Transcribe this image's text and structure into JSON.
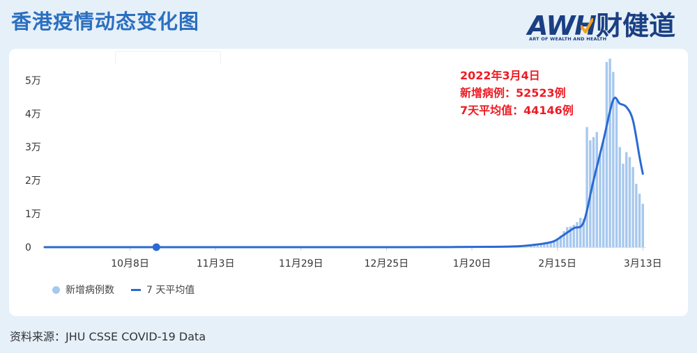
{
  "header": {
    "title": "香港疫情动态变化图"
  },
  "logo": {
    "main": "AWH",
    "cn": "财健道",
    "sub": "ART OF WEALTH AND HEALTH",
    "brand_color": "#1a3f82",
    "check_color": "#f2a31b"
  },
  "annotation": {
    "date": "2022年3月4日",
    "new_cases": "新增病例：52523例",
    "avg7": "7天平均值：44146例",
    "color": "#ee1b24"
  },
  "legend": {
    "bar_label": "新增病例数",
    "line_label": "7 天平均值"
  },
  "source": "资料来源：JHU CSSE COVID-19 Data",
  "chart_data": {
    "type": "bar",
    "title": "",
    "xlabel": "",
    "ylabel": "",
    "ylim": [
      0,
      58000
    ],
    "y_ticks": [
      {
        "value": 0,
        "label": "0"
      },
      {
        "value": 10000,
        "label": "1万"
      },
      {
        "value": 20000,
        "label": "2万"
      },
      {
        "value": 30000,
        "label": "3万"
      },
      {
        "value": 40000,
        "label": "4万"
      },
      {
        "value": 50000,
        "label": "5万"
      }
    ],
    "x_range": [
      "2021-09-12",
      "2022-03-14"
    ],
    "x_ticks": [
      {
        "date": "2021-10-08",
        "label": "10月8日"
      },
      {
        "date": "2021-11-03",
        "label": "11月3日"
      },
      {
        "date": "2021-11-29",
        "label": "11月29日"
      },
      {
        "date": "2021-12-25",
        "label": "12月25日"
      },
      {
        "date": "2022-01-20",
        "label": "1月20日"
      },
      {
        "date": "2022-02-15",
        "label": "2月15日"
      },
      {
        "date": "2022-03-13",
        "label": "3月13日"
      }
    ],
    "marker": {
      "date": "2021-10-16",
      "value": 0
    },
    "colors": {
      "bars": "#a7c8ee",
      "line": "#2a6ad2"
    },
    "series": [
      {
        "name": "新增病例数",
        "type": "bar",
        "points": [
          {
            "date": "2022-02-07",
            "value": 600
          },
          {
            "date": "2022-02-08",
            "value": 700
          },
          {
            "date": "2022-02-09",
            "value": 900
          },
          {
            "date": "2022-02-10",
            "value": 1100
          },
          {
            "date": "2022-02-11",
            "value": 1400
          },
          {
            "date": "2022-02-12",
            "value": 1500
          },
          {
            "date": "2022-02-13",
            "value": 1800
          },
          {
            "date": "2022-02-14",
            "value": 2100
          },
          {
            "date": "2022-02-15",
            "value": 2400
          },
          {
            "date": "2022-02-16",
            "value": 3500
          },
          {
            "date": "2022-02-17",
            "value": 4800
          },
          {
            "date": "2022-02-18",
            "value": 6000
          },
          {
            "date": "2022-02-19",
            "value": 6200
          },
          {
            "date": "2022-02-20",
            "value": 6700
          },
          {
            "date": "2022-02-21",
            "value": 7500
          },
          {
            "date": "2022-02-22",
            "value": 8800
          },
          {
            "date": "2022-02-23",
            "value": 8500
          },
          {
            "date": "2022-02-24",
            "value": 36000
          },
          {
            "date": "2022-02-25",
            "value": 32000
          },
          {
            "date": "2022-02-26",
            "value": 33000
          },
          {
            "date": "2022-02-27",
            "value": 34500
          },
          {
            "date": "2022-02-28",
            "value": 28000
          },
          {
            "date": "2022-03-01",
            "value": 32000
          },
          {
            "date": "2022-03-02",
            "value": 55500
          },
          {
            "date": "2022-03-03",
            "value": 56500
          },
          {
            "date": "2022-03-04",
            "value": 52523
          },
          {
            "date": "2022-03-05",
            "value": 44000
          },
          {
            "date": "2022-03-06",
            "value": 30000
          },
          {
            "date": "2022-03-07",
            "value": 25000
          },
          {
            "date": "2022-03-08",
            "value": 28500
          },
          {
            "date": "2022-03-09",
            "value": 27000
          },
          {
            "date": "2022-03-10",
            "value": 24000
          },
          {
            "date": "2022-03-11",
            "value": 19000
          },
          {
            "date": "2022-03-12",
            "value": 16000
          },
          {
            "date": "2022-03-13",
            "value": 13000
          }
        ]
      },
      {
        "name": "7 天平均值",
        "type": "line",
        "points": [
          {
            "date": "2021-09-12",
            "value": 0
          },
          {
            "date": "2021-12-31",
            "value": 0
          },
          {
            "date": "2022-01-15",
            "value": 50
          },
          {
            "date": "2022-01-25",
            "value": 100
          },
          {
            "date": "2022-02-01",
            "value": 200
          },
          {
            "date": "2022-02-05",
            "value": 400
          },
          {
            "date": "2022-02-08",
            "value": 700
          },
          {
            "date": "2022-02-11",
            "value": 1100
          },
          {
            "date": "2022-02-14",
            "value": 1800
          },
          {
            "date": "2022-02-17",
            "value": 3700
          },
          {
            "date": "2022-02-20",
            "value": 5700
          },
          {
            "date": "2022-02-23",
            "value": 7500
          },
          {
            "date": "2022-02-26",
            "value": 20000
          },
          {
            "date": "2022-03-01",
            "value": 32000
          },
          {
            "date": "2022-03-04",
            "value": 44146
          },
          {
            "date": "2022-03-06",
            "value": 43000
          },
          {
            "date": "2022-03-08",
            "value": 42000
          },
          {
            "date": "2022-03-10",
            "value": 38000
          },
          {
            "date": "2022-03-12",
            "value": 27000
          },
          {
            "date": "2022-03-13",
            "value": 22000
          }
        ]
      }
    ]
  }
}
